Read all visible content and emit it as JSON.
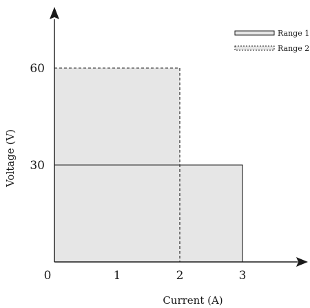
{
  "chart_data": {
    "type": "area",
    "title": "",
    "xlabel": "Current (A)",
    "ylabel": "Voltage (V)",
    "xlim": [
      0,
      3.85
    ],
    "ylim": [
      0,
      80
    ],
    "x_ticks": [
      "0",
      "1",
      "2",
      "3"
    ],
    "x_tick_values": [
      0,
      1,
      2,
      3
    ],
    "y_ticks": [
      "30",
      "60"
    ],
    "y_tick_values": [
      30,
      60
    ],
    "grid": false,
    "legend_position": "top-right",
    "fill_color": "#e6e6e6",
    "line_color": "#1a1a1a",
    "series": [
      {
        "name": "Range 1",
        "line_style": "solid",
        "max_current": 3,
        "max_voltage": 30
      },
      {
        "name": "Range 2",
        "line_style": "dashed",
        "max_current": 2,
        "max_voltage": 60
      }
    ]
  }
}
